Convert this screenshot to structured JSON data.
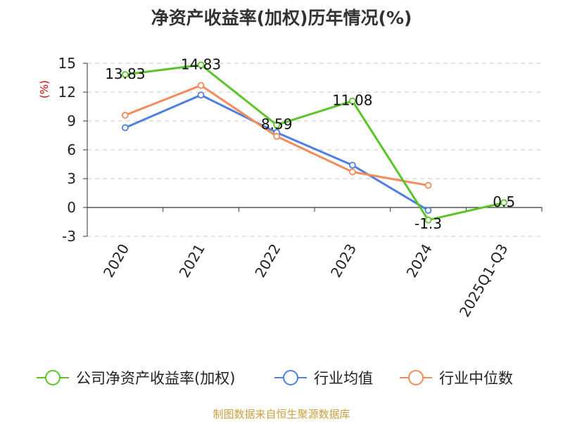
{
  "chart_data": {
    "type": "line",
    "title": "净资产收益率(加权)历年情况(%)",
    "ylabel": "(%)",
    "categories": [
      "2020",
      "2021",
      "2022",
      "2023",
      "2024",
      "2025Q1-Q3"
    ],
    "ylim": [
      -3,
      15
    ],
    "yticks": [
      15,
      12,
      9,
      6,
      3,
      0,
      -3
    ],
    "grid": true,
    "legend_position": "bottom",
    "series": [
      {
        "name": "公司净资产收益率(加权)",
        "color": "#5cc42b",
        "values": [
          13.83,
          14.83,
          8.59,
          11.08,
          -1.3,
          0.5
        ],
        "labels": [
          "13.83",
          "14.83",
          "8.59",
          "11.08",
          "-1.3",
          "0.5"
        ]
      },
      {
        "name": "行业均值",
        "color": "#4f7fe0",
        "values": [
          8.3,
          11.7,
          7.8,
          4.4,
          -0.3,
          null
        ]
      },
      {
        "name": "行业中位数",
        "color": "#f58a5b",
        "values": [
          9.6,
          12.7,
          7.4,
          3.7,
          2.3,
          null
        ]
      }
    ],
    "source": "制图数据来自恒生聚源数据库"
  }
}
